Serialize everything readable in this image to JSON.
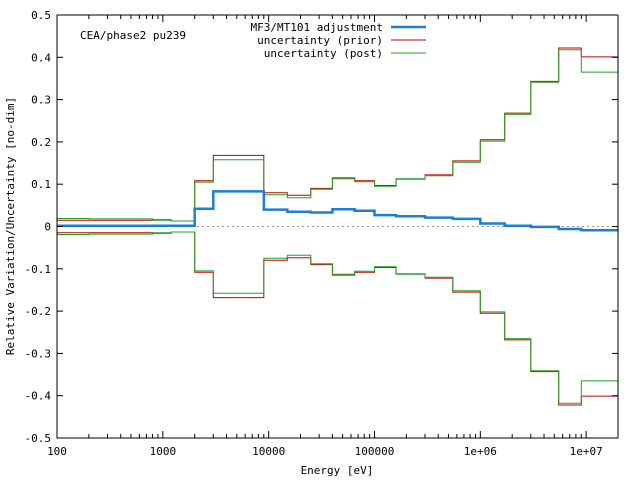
{
  "chart_data": {
    "type": "line",
    "annotation": "CEA/phase2 pu239",
    "xlabel": "Energy [eV]",
    "ylabel": "Relative Variation/Uncertainty [no-dim]",
    "xscale": "log",
    "xlim": [
      100,
      20000000
    ],
    "ylim": [
      -0.5,
      0.5
    ],
    "grid": false,
    "legend_position": "top-right",
    "x_ticks": [
      {
        "value": 100,
        "label": "100"
      },
      {
        "value": 1000,
        "label": "1000"
      },
      {
        "value": 10000,
        "label": "10000"
      },
      {
        "value": 100000,
        "label": "100000"
      },
      {
        "value": 1000000,
        "label": "1e+06"
      },
      {
        "value": 10000000,
        "label": "1e+07"
      }
    ],
    "y_ticks": [
      {
        "value": 0.5,
        "label": "0.5"
      },
      {
        "value": 0.4,
        "label": "0.4"
      },
      {
        "value": 0.3,
        "label": "0.3"
      },
      {
        "value": 0.2,
        "label": "0.2"
      },
      {
        "value": 0.1,
        "label": "0.1"
      },
      {
        "value": 0,
        "label": "0"
      },
      {
        "value": -0.1,
        "label": "-0.1"
      },
      {
        "value": -0.2,
        "label": "-0.2"
      },
      {
        "value": -0.3,
        "label": "-0.3"
      },
      {
        "value": -0.4,
        "label": "-0.4"
      },
      {
        "value": -0.5,
        "label": "-0.5"
      }
    ],
    "bin_edges": [
      100,
      200,
      800,
      1200,
      2000,
      3000,
      9000,
      15000,
      25000,
      40000,
      65000,
      100000,
      160000,
      300000,
      550000,
      1000000,
      1700000,
      3000000,
      5500000,
      9000000,
      20000000
    ],
    "series": [
      {
        "name": "MF3/MT101 adjustment",
        "color": "#1a7fd6",
        "style": "step",
        "values": [
          0.002,
          0.002,
          0.002,
          0.002,
          0.042,
          0.083,
          0.04,
          0.035,
          0.033,
          0.041,
          0.037,
          0.027,
          0.024,
          0.021,
          0.018,
          0.007,
          0.002,
          -0.001,
          -0.006,
          -0.009
        ]
      },
      {
        "name": "uncertainty (prior)",
        "color": "#c00000",
        "style": "step-symmetric",
        "values": [
          0.015,
          0.015,
          0.016,
          0.013,
          0.108,
          0.168,
          0.08,
          0.074,
          0.09,
          0.115,
          0.108,
          0.097,
          0.112,
          0.122,
          0.155,
          0.205,
          0.268,
          0.343,
          0.422,
          0.401
        ]
      },
      {
        "name": "uncertainty (post)",
        "color": "#22a022",
        "style": "step-symmetric",
        "values": [
          0.019,
          0.018,
          0.015,
          0.013,
          0.105,
          0.158,
          0.075,
          0.068,
          0.088,
          0.113,
          0.106,
          0.095,
          0.113,
          0.12,
          0.152,
          0.202,
          0.265,
          0.341,
          0.418,
          0.365
        ]
      }
    ]
  }
}
